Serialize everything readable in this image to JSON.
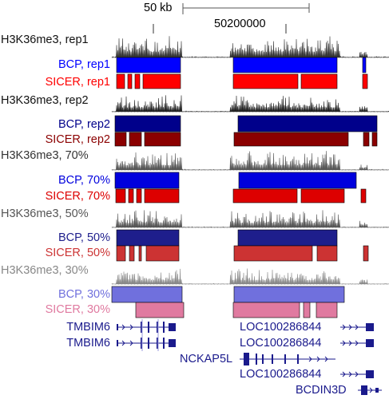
{
  "scale_bar_label": "50 kb",
  "coordinate_label": "50200000",
  "tracks": [
    {
      "kind": "signal",
      "label": "H3K36me3, rep1",
      "color": "#333333",
      "seed": 1,
      "amp": 1.0
    },
    {
      "kind": "bar",
      "label": "BCP, rep1",
      "color": "#0000ff",
      "segments": [
        [
          146,
          226
        ],
        [
          292,
          422
        ],
        [
          454,
          458
        ]
      ]
    },
    {
      "kind": "bar",
      "label": "SICER, rep1",
      "color": "#ff0000",
      "segments": [
        [
          146,
          156
        ],
        [
          160,
          165
        ],
        [
          169,
          175
        ],
        [
          179,
          226
        ],
        [
          292,
          373
        ],
        [
          377,
          422
        ],
        [
          454,
          460
        ]
      ]
    },
    {
      "kind": "signal",
      "label": "H3K36me3, rep2",
      "color": "#222222",
      "seed": 2,
      "amp": 0.75
    },
    {
      "kind": "bar",
      "label": "BCP, rep2",
      "color": "#00008b",
      "segments": [
        [
          144,
          226
        ],
        [
          298,
          472
        ]
      ]
    },
    {
      "kind": "bar",
      "label": "SICER, rep2",
      "color": "#8b0000",
      "segments": [
        [
          144,
          158
        ],
        [
          162,
          177
        ],
        [
          181,
          226
        ],
        [
          293,
          436
        ],
        [
          455,
          462
        ],
        [
          466,
          472
        ]
      ]
    },
    {
      "kind": "signal",
      "label": "H3K36me3, 70%",
      "color": "#555555",
      "seed": 3,
      "amp": 0.85
    },
    {
      "kind": "bar",
      "label": "BCP, 70%",
      "color": "#0000dd",
      "segments": [
        [
          144,
          224
        ],
        [
          299,
          446
        ]
      ]
    },
    {
      "kind": "bar",
      "label": "SICER, 70%",
      "color": "#dd0000",
      "segments": [
        [
          145,
          157
        ],
        [
          161,
          167
        ],
        [
          171,
          177
        ],
        [
          181,
          224
        ],
        [
          292,
          372
        ],
        [
          377,
          431
        ],
        [
          452,
          458
        ]
      ]
    },
    {
      "kind": "signal",
      "label": "H3K36me3, 50%",
      "color": "#555555",
      "seed": 4,
      "amp": 0.8
    },
    {
      "kind": "bar",
      "label": "BCP, 50%",
      "color": "#1e1e8c",
      "segments": [
        [
          146,
          224
        ],
        [
          298,
          422
        ]
      ]
    },
    {
      "kind": "bar",
      "label": "SICER, 50%",
      "color": "#cc3333",
      "segments": [
        [
          146,
          157
        ],
        [
          162,
          168
        ],
        [
          174,
          177
        ],
        [
          183,
          224
        ],
        [
          293,
          391
        ],
        [
          397,
          422
        ],
        [
          455,
          461
        ]
      ]
    },
    {
      "kind": "signal",
      "label": "H3K36me3, 30%",
      "color": "#888888",
      "seed": 5,
      "amp": 0.7
    },
    {
      "kind": "bar",
      "label": "BCP, 30%",
      "color": "#7070dd",
      "segments": [
        [
          140,
          228
        ],
        [
          293,
          431
        ]
      ]
    },
    {
      "kind": "bar",
      "label": "SICER, 30%",
      "color": "#e07aa0",
      "segments": [
        [
          170,
          230
        ],
        [
          292,
          375
        ],
        [
          380,
          388
        ],
        [
          396,
          422
        ]
      ]
    }
  ],
  "genes": [
    {
      "label": "TMBIM6",
      "label_color": "#1a1a8c"
    },
    {
      "label": "TMBIM6",
      "label_color": "#1a1a8c"
    },
    {
      "label": "LOC100286844",
      "label_color": "#1a1a8c"
    },
    {
      "label": "LOC100286844",
      "label_color": "#1a1a8c"
    },
    {
      "label": "NCKAP5L",
      "label_color": "#1a1a8c"
    },
    {
      "label": "LOC100286844",
      "label_color": "#1a1a8c"
    },
    {
      "label": "BCDIN3D",
      "label_color": "#1a1a8c"
    }
  ]
}
